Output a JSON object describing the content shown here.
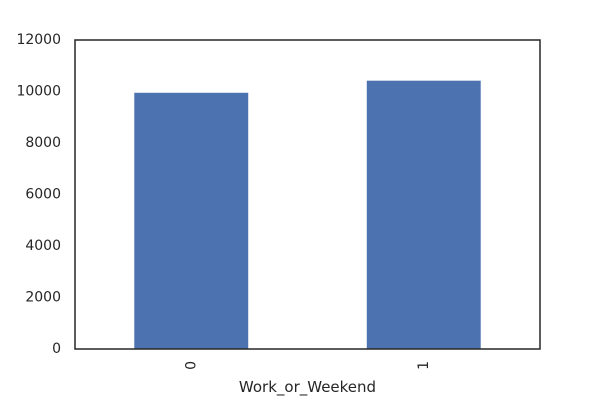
{
  "chart_data": {
    "type": "bar",
    "categories": [
      "0",
      "1"
    ],
    "values": [
      9950,
      10420
    ],
    "xlabel": "Work_or_Weekend",
    "ylabel": "",
    "ylim": [
      0,
      12000
    ],
    "yticks": [
      0,
      2000,
      4000,
      6000,
      8000,
      10000,
      12000
    ],
    "x_tick_rotation_deg": 90,
    "grid": false,
    "legend": "none",
    "bar_color": "#4c72b0",
    "spine_color": "#262626"
  }
}
